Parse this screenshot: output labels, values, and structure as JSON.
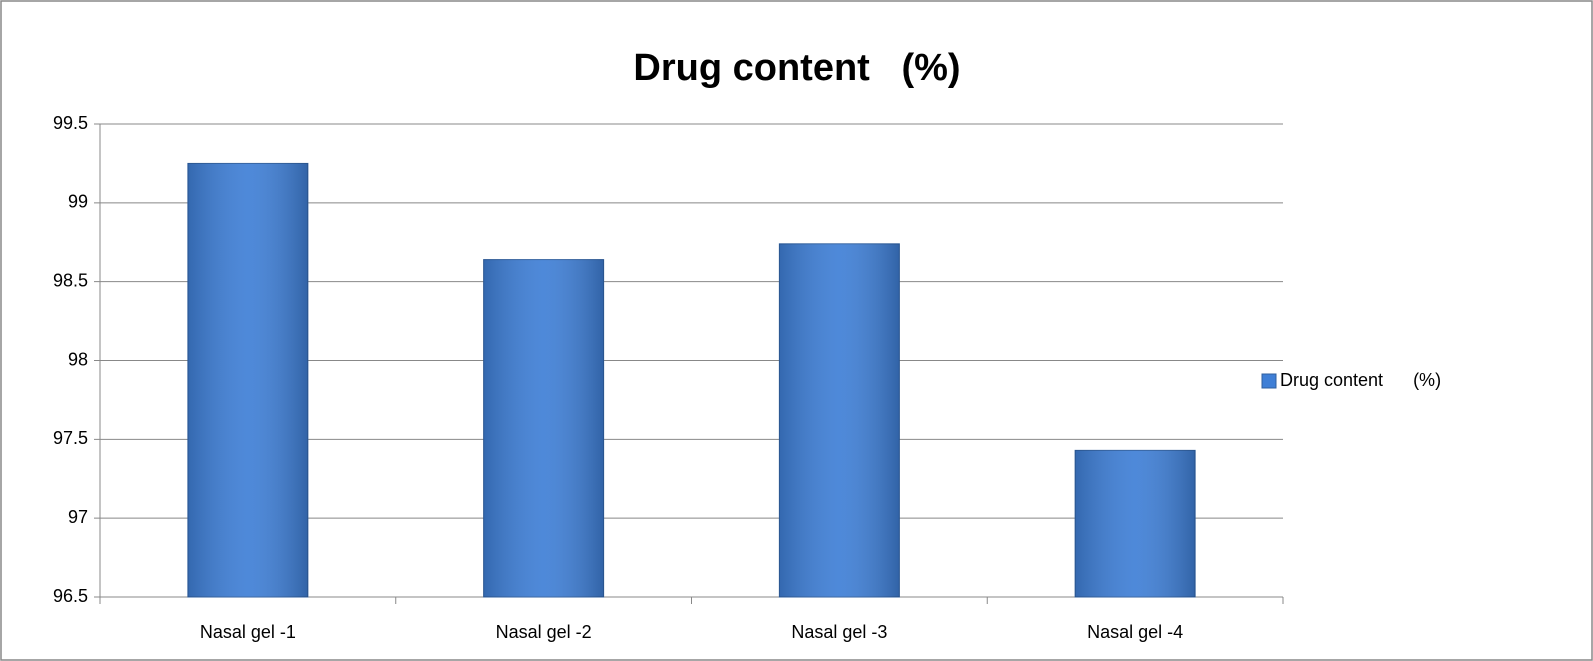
{
  "chart_data": {
    "type": "bar",
    "title": "Drug content   (%)",
    "categories": [
      "Nasal gel -1",
      "Nasal gel -2",
      "Nasal gel -3",
      "Nasal gel -4"
    ],
    "series": [
      {
        "name": "Drug content      (%)",
        "color": "#3f7fd6",
        "values": [
          99.25,
          98.64,
          98.74,
          97.43
        ]
      }
    ],
    "ylim": [
      96.5,
      99.5
    ],
    "yticks": [
      96.5,
      97,
      97.5,
      98,
      98.5,
      99,
      99.5
    ],
    "grid": true,
    "legend": "right"
  }
}
